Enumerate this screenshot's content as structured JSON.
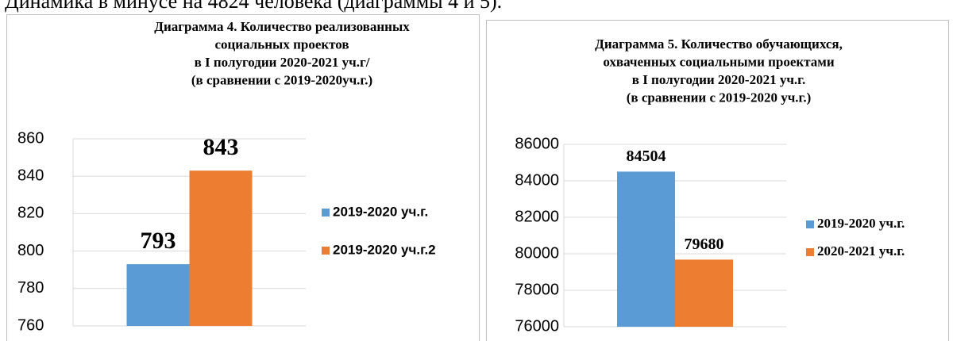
{
  "document": {
    "text": "Динамика в минусе на 4824 человека (диаграммы 4 и 5)."
  },
  "chart_data": [
    {
      "type": "bar",
      "title": [
        "Диаграмма 4. Количество реализованных",
        "социальных проектов",
        "в I полугодии 2020-2021 уч.г/",
        "(в сравнении с 2019-2020уч.г.)"
      ],
      "categories": [
        null
      ],
      "series": [
        {
          "name": "2019-2020 уч.г.",
          "color": "#5b9bd5",
          "values": [
            793
          ]
        },
        {
          "name": "2019-2020 уч.г.2",
          "color": "#ed7d31",
          "values": [
            843
          ]
        }
      ],
      "ylim": [
        760,
        860
      ],
      "yticks": [
        760,
        780,
        800,
        820,
        840,
        860
      ],
      "grid": true,
      "legend": "right"
    },
    {
      "type": "bar",
      "title": [
        "Диаграмма 5. Количество обучающихся,",
        "охваченных социальными проектами",
        "в  I полугодии 2020-2021 уч.г.",
        "(в сравнении с 2019-2020 уч.г.)"
      ],
      "categories": [
        null
      ],
      "series": [
        {
          "name": "2019-2020 уч.г.",
          "color": "#5b9bd5",
          "values": [
            84504
          ]
        },
        {
          "name": "2020-2021 уч.г.",
          "color": "#ed7d31",
          "values": [
            79680
          ]
        }
      ],
      "ylim": [
        76000,
        86000
      ],
      "yticks": [
        76000,
        78000,
        80000,
        82000,
        84000,
        86000
      ],
      "grid": true,
      "legend": "right"
    }
  ]
}
